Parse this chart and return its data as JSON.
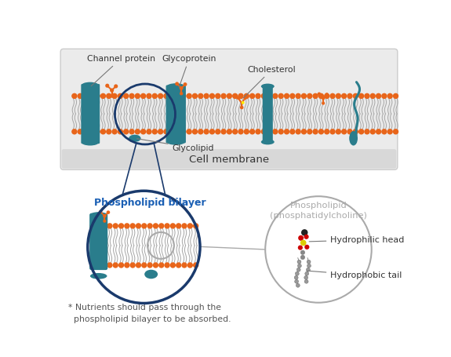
{
  "bg_color": "#ffffff",
  "membrane_bg": "#e8e8e8",
  "orange": "#E8651A",
  "orange_dark": "#cc5500",
  "teal": "#2a7d8c",
  "teal_dark": "#1d5f6e",
  "dark_blue": "#1a3a6c",
  "gray_line": "#aaaaaa",
  "label_color": "#333333",
  "bilayer_circle_color": "#1a3a6c",
  "zoom_circle_color": "#aaaaaa",
  "phospholipid_circle_color": "#aaaaaa",
  "title_cell_membrane": "Cell membrane",
  "label_channel": "Channel protein",
  "label_glycoprotein": "Glycoprotein",
  "label_cholesterol": "Cholesterol",
  "label_glycolipid": "Glycolipid",
  "label_bilayer": "Phospholipid bilayer",
  "label_phospholipid": "Phospholipid\n(phosphatidylcholine)",
  "label_hydrophilic": "Hydrophilic head",
  "label_hydrophobic": "Hydrophobic tail",
  "footnote": "* Nutrients should pass through the\n  phospholipid bilayer to be absorbed."
}
